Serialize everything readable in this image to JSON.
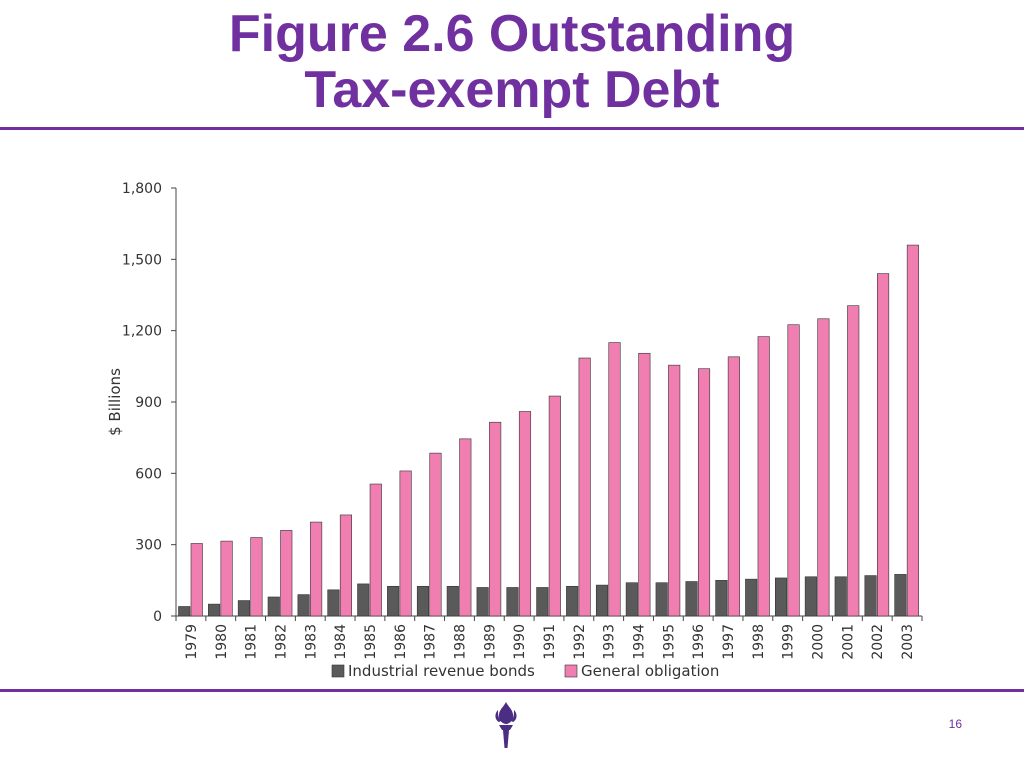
{
  "slide": {
    "title_line1": "Figure 2.6 Outstanding",
    "title_line2": "Tax-exempt Debt",
    "page_number": "16",
    "accent_color": "#7030a0"
  },
  "logo": {
    "icon": "torch-icon"
  },
  "chart_data": {
    "type": "bar",
    "title": "",
    "xlabel": "",
    "ylabel": "$ Billions",
    "ylim": [
      0,
      1800
    ],
    "yticks": [
      0,
      300,
      600,
      900,
      1200,
      1500,
      1800
    ],
    "ytick_labels": [
      "0",
      "300",
      "600",
      "900",
      "1,200",
      "1,500",
      "1,800"
    ],
    "grid": false,
    "legend_position": "bottom",
    "categories": [
      "1979",
      "1980",
      "1981",
      "1982",
      "1983",
      "1984",
      "1985",
      "1986",
      "1987",
      "1988",
      "1989",
      "1990",
      "1991",
      "1992",
      "1993",
      "1994",
      "1995",
      "1996",
      "1997",
      "1998",
      "1999",
      "2000",
      "2001",
      "2002",
      "2003"
    ],
    "series": [
      {
        "name": "Industrial revenue bonds",
        "color": "#5a5a5a",
        "values": [
          40,
          50,
          65,
          80,
          90,
          110,
          135,
          125,
          125,
          125,
          120,
          120,
          120,
          125,
          130,
          140,
          140,
          145,
          150,
          155,
          160,
          165,
          165,
          170,
          175
        ]
      },
      {
        "name": "General obligation",
        "color": "#f07eb0",
        "values": [
          305,
          315,
          330,
          360,
          395,
          425,
          555,
          610,
          685,
          745,
          815,
          860,
          925,
          1085,
          1150,
          1105,
          1055,
          1040,
          1090,
          1175,
          1225,
          1250,
          1305,
          1440,
          1560
        ]
      }
    ]
  }
}
